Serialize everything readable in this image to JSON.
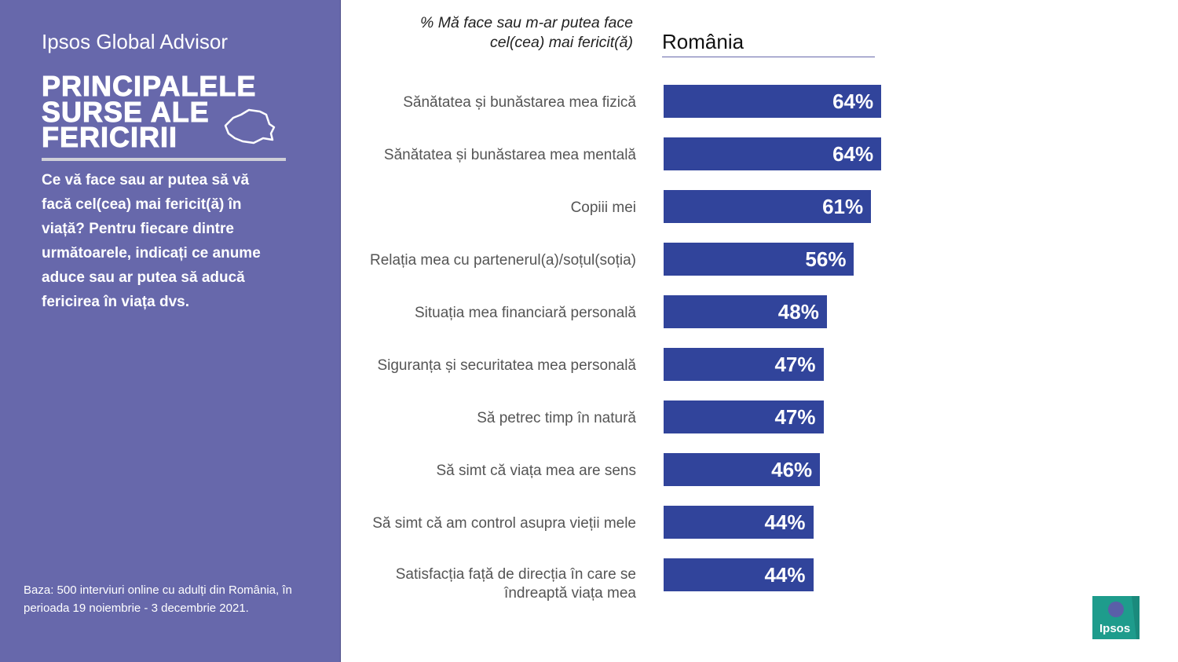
{
  "sidebar": {
    "brand": "Ipsos Global Advisor",
    "title_lines": [
      "PRINCIPALELE",
      "SURSE ALE",
      "FERICIRII"
    ],
    "question": "Ce vă face sau ar putea să vă facă cel(cea) mai fericit(ă) în viață? Pentru fiecare dintre următoarele, indicați ce anume aduce sau ar putea să aducă fericirea în viața dvs.",
    "note": "Baza: 500 interviuri online cu adulți din România, în perioada 19 noiembrie - 3 decembrie 2021."
  },
  "logo": "Ipsos",
  "chart_data": {
    "type": "bar",
    "orientation": "horizontal",
    "title": "% Mă face sau m-ar putea face cel(cea) mai fericit(ă)",
    "subtitle": "România",
    "categories": [
      "Sănătatea și bunăstarea mea fizică",
      "Sănătatea și bunăstarea mea mentală",
      "Copiii mei",
      "Relația mea cu partenerul(a)/soțul(soția)",
      "Situația mea financiară personală",
      "Siguranța și securitatea mea personală",
      "Să petrec timp în natură",
      "Să simt că viața mea are sens",
      "Să simt că am control asupra vieții mele",
      "Satisfacția față de direcția în care se îndreaptă viața mea"
    ],
    "values": [
      64,
      64,
      61,
      56,
      48,
      47,
      47,
      46,
      44,
      44
    ],
    "value_labels": [
      "64%",
      "64%",
      "61%",
      "56%",
      "48%",
      "47%",
      "47%",
      "46%",
      "44%",
      "44%"
    ],
    "color": "#31449b",
    "xlim": [
      0,
      100
    ]
  }
}
